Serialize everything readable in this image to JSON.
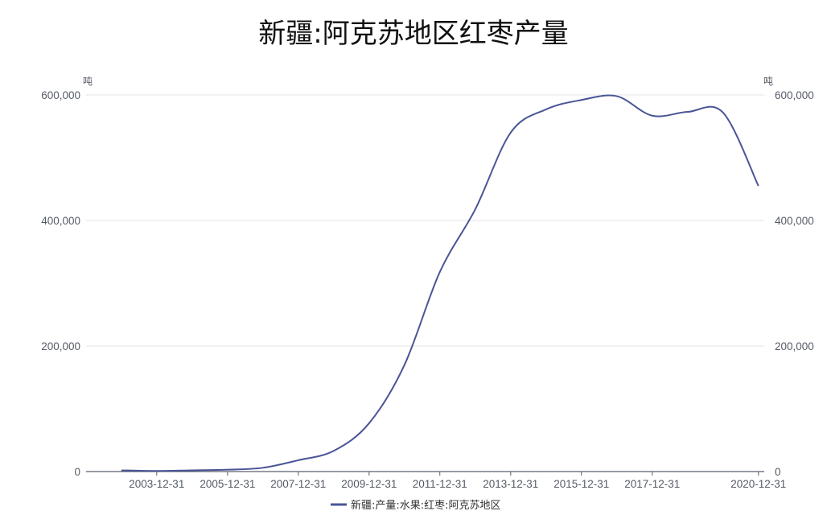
{
  "title": "新疆:阿克苏地区红枣产量",
  "chart_data": {
    "type": "line",
    "title": "新疆:阿克苏地区红枣产量",
    "y_unit_left": "吨",
    "y_unit_right": "吨",
    "ylim": [
      0,
      600000
    ],
    "y_ticks": [
      0,
      200000,
      400000,
      600000
    ],
    "y_tick_labels": [
      "0",
      "200,000",
      "400,000",
      "600,000"
    ],
    "x_tick_labels": [
      "2003-12-31",
      "2005-12-31",
      "2007-12-31",
      "2009-12-31",
      "2011-12-31",
      "2013-12-31",
      "2015-12-31",
      "2017-12-31",
      "2020-12-31"
    ],
    "grid": true,
    "legend_position": "bottom-center",
    "colors": {
      "series": "#4a5597",
      "grid": "#e6e6e6",
      "axis": "#5a5f6e"
    },
    "series": [
      {
        "name": "新疆:产量:水果:红枣:阿克苏地区",
        "x": [
          "2002-12-31",
          "2003-12-31",
          "2004-12-31",
          "2005-12-31",
          "2006-12-31",
          "2007-12-31",
          "2008-12-31",
          "2009-12-31",
          "2010-12-31",
          "2011-12-31",
          "2012-12-31",
          "2013-12-31",
          "2014-12-31",
          "2015-12-31",
          "2016-12-31",
          "2017-12-31",
          "2018-12-31",
          "2019-12-31",
          "2020-12-31"
        ],
        "values": [
          2000,
          1000,
          2000,
          3000,
          6000,
          18000,
          33000,
          77000,
          170000,
          318000,
          418000,
          540000,
          577000,
          592000,
          598000,
          567000,
          573000,
          572000,
          455000
        ]
      }
    ]
  }
}
